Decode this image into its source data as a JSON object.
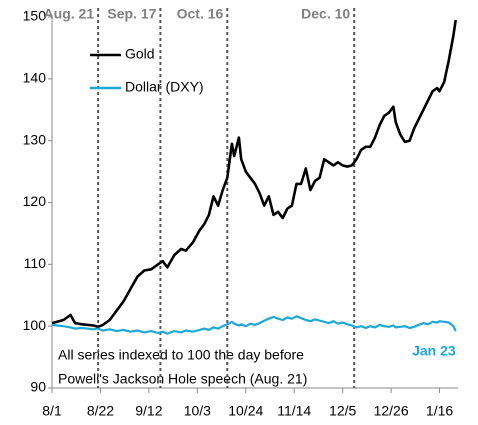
{
  "chart_data": {
    "type": "line",
    "x": [
      0,
      5,
      8,
      10,
      13,
      18,
      20,
      22,
      25,
      28,
      31,
      34,
      37,
      40,
      43,
      46,
      48,
      50,
      53,
      56,
      58,
      61,
      64,
      66,
      68,
      70,
      72,
      74,
      76,
      78,
      79,
      81,
      82,
      84,
      86,
      88,
      90,
      92,
      94,
      96,
      98,
      100,
      102,
      104,
      106,
      108,
      110,
      112,
      114,
      116,
      118,
      120,
      122,
      124,
      126,
      128,
      130,
      132,
      134,
      136,
      138,
      140,
      142,
      144,
      146,
      148,
      149,
      151,
      153,
      155,
      157,
      159,
      161,
      163,
      165,
      167,
      168,
      170,
      172,
      174,
      175
    ],
    "series": [
      {
        "name": "Gold",
        "color": "#000000",
        "values": [
          100.5,
          101,
          101.8,
          100.5,
          100.3,
          100.1,
          99.9,
          100.2,
          101,
          102.5,
          104,
          106,
          108,
          109,
          109.2,
          110,
          110.5,
          109.5,
          111.5,
          112.5,
          112.2,
          113.5,
          115.5,
          116.5,
          118,
          121,
          119.5,
          122,
          124,
          129.5,
          127.5,
          130.5,
          127,
          125,
          124,
          123,
          121.5,
          119.5,
          121,
          118,
          118.5,
          117.5,
          119,
          119.5,
          123,
          123,
          125.5,
          122,
          123.5,
          124,
          127,
          126.5,
          126,
          126.5,
          126,
          125.8,
          126,
          127,
          128.5,
          129,
          129,
          130.5,
          132.5,
          134,
          134.5,
          135.5,
          133,
          131,
          129.8,
          130,
          132,
          133.5,
          135,
          136.5,
          138,
          138.5,
          138,
          139.5,
          143,
          147,
          149.5
        ]
      },
      {
        "name": "Dollar (DXY)",
        "color": "#1ea8d8",
        "values": [
          100.2,
          100,
          99.8,
          99.6,
          99.7,
          99.5,
          99.6,
          99.3,
          99.5,
          99.2,
          99.4,
          99.1,
          99.3,
          99,
          99.2,
          98.9,
          99.1,
          98.8,
          99.2,
          99,
          99.3,
          99.1,
          99.4,
          99.6,
          99.4,
          99.8,
          99.6,
          100,
          100.3,
          100.7,
          100.4,
          100.1,
          100.3,
          100,
          100.4,
          100.2,
          100.5,
          100.9,
          101.2,
          101.5,
          101.2,
          101,
          101.4,
          101.2,
          101.6,
          101.3,
          101,
          100.8,
          101.1,
          100.9,
          100.7,
          100.5,
          100.8,
          100.4,
          100.6,
          100.3,
          100.1,
          99.8,
          100,
          99.7,
          100,
          99.8,
          100.2,
          100,
          99.9,
          100.1,
          99.8,
          99.9,
          100,
          99.7,
          99.9,
          100.2,
          100.5,
          100.3,
          100.7,
          100.6,
          100.8,
          100.7,
          100.6,
          100,
          99.2
        ]
      }
    ],
    "xlim": [
      0,
      176
    ],
    "xticks": [
      {
        "value": 0,
        "label": "8/1"
      },
      {
        "value": 21,
        "label": "8/22"
      },
      {
        "value": 42,
        "label": "9/12"
      },
      {
        "value": 63,
        "label": "10/3"
      },
      {
        "value": 84,
        "label": "10/24"
      },
      {
        "value": 105,
        "label": "11/14"
      },
      {
        "value": 126,
        "label": "12/5"
      },
      {
        "value": 147,
        "label": "12/26"
      },
      {
        "value": 168,
        "label": "1/16"
      }
    ],
    "ylim": [
      90,
      150
    ],
    "yticks": [
      90,
      100,
      110,
      120,
      130,
      140,
      150
    ],
    "events": [
      {
        "x": 20,
        "label": "Aug. 21"
      },
      {
        "x": 47,
        "label": "Sep. 17"
      },
      {
        "x": 76,
        "label": "Oct. 16"
      },
      {
        "x": 131,
        "label": "Dec. 10"
      }
    ],
    "annotations": [
      "All series indexed to 100 the day before",
      "Powell's Jackson Hole speech (Aug. 21)"
    ],
    "end_label": {
      "x": 175,
      "text": "Jan 23"
    }
  }
}
